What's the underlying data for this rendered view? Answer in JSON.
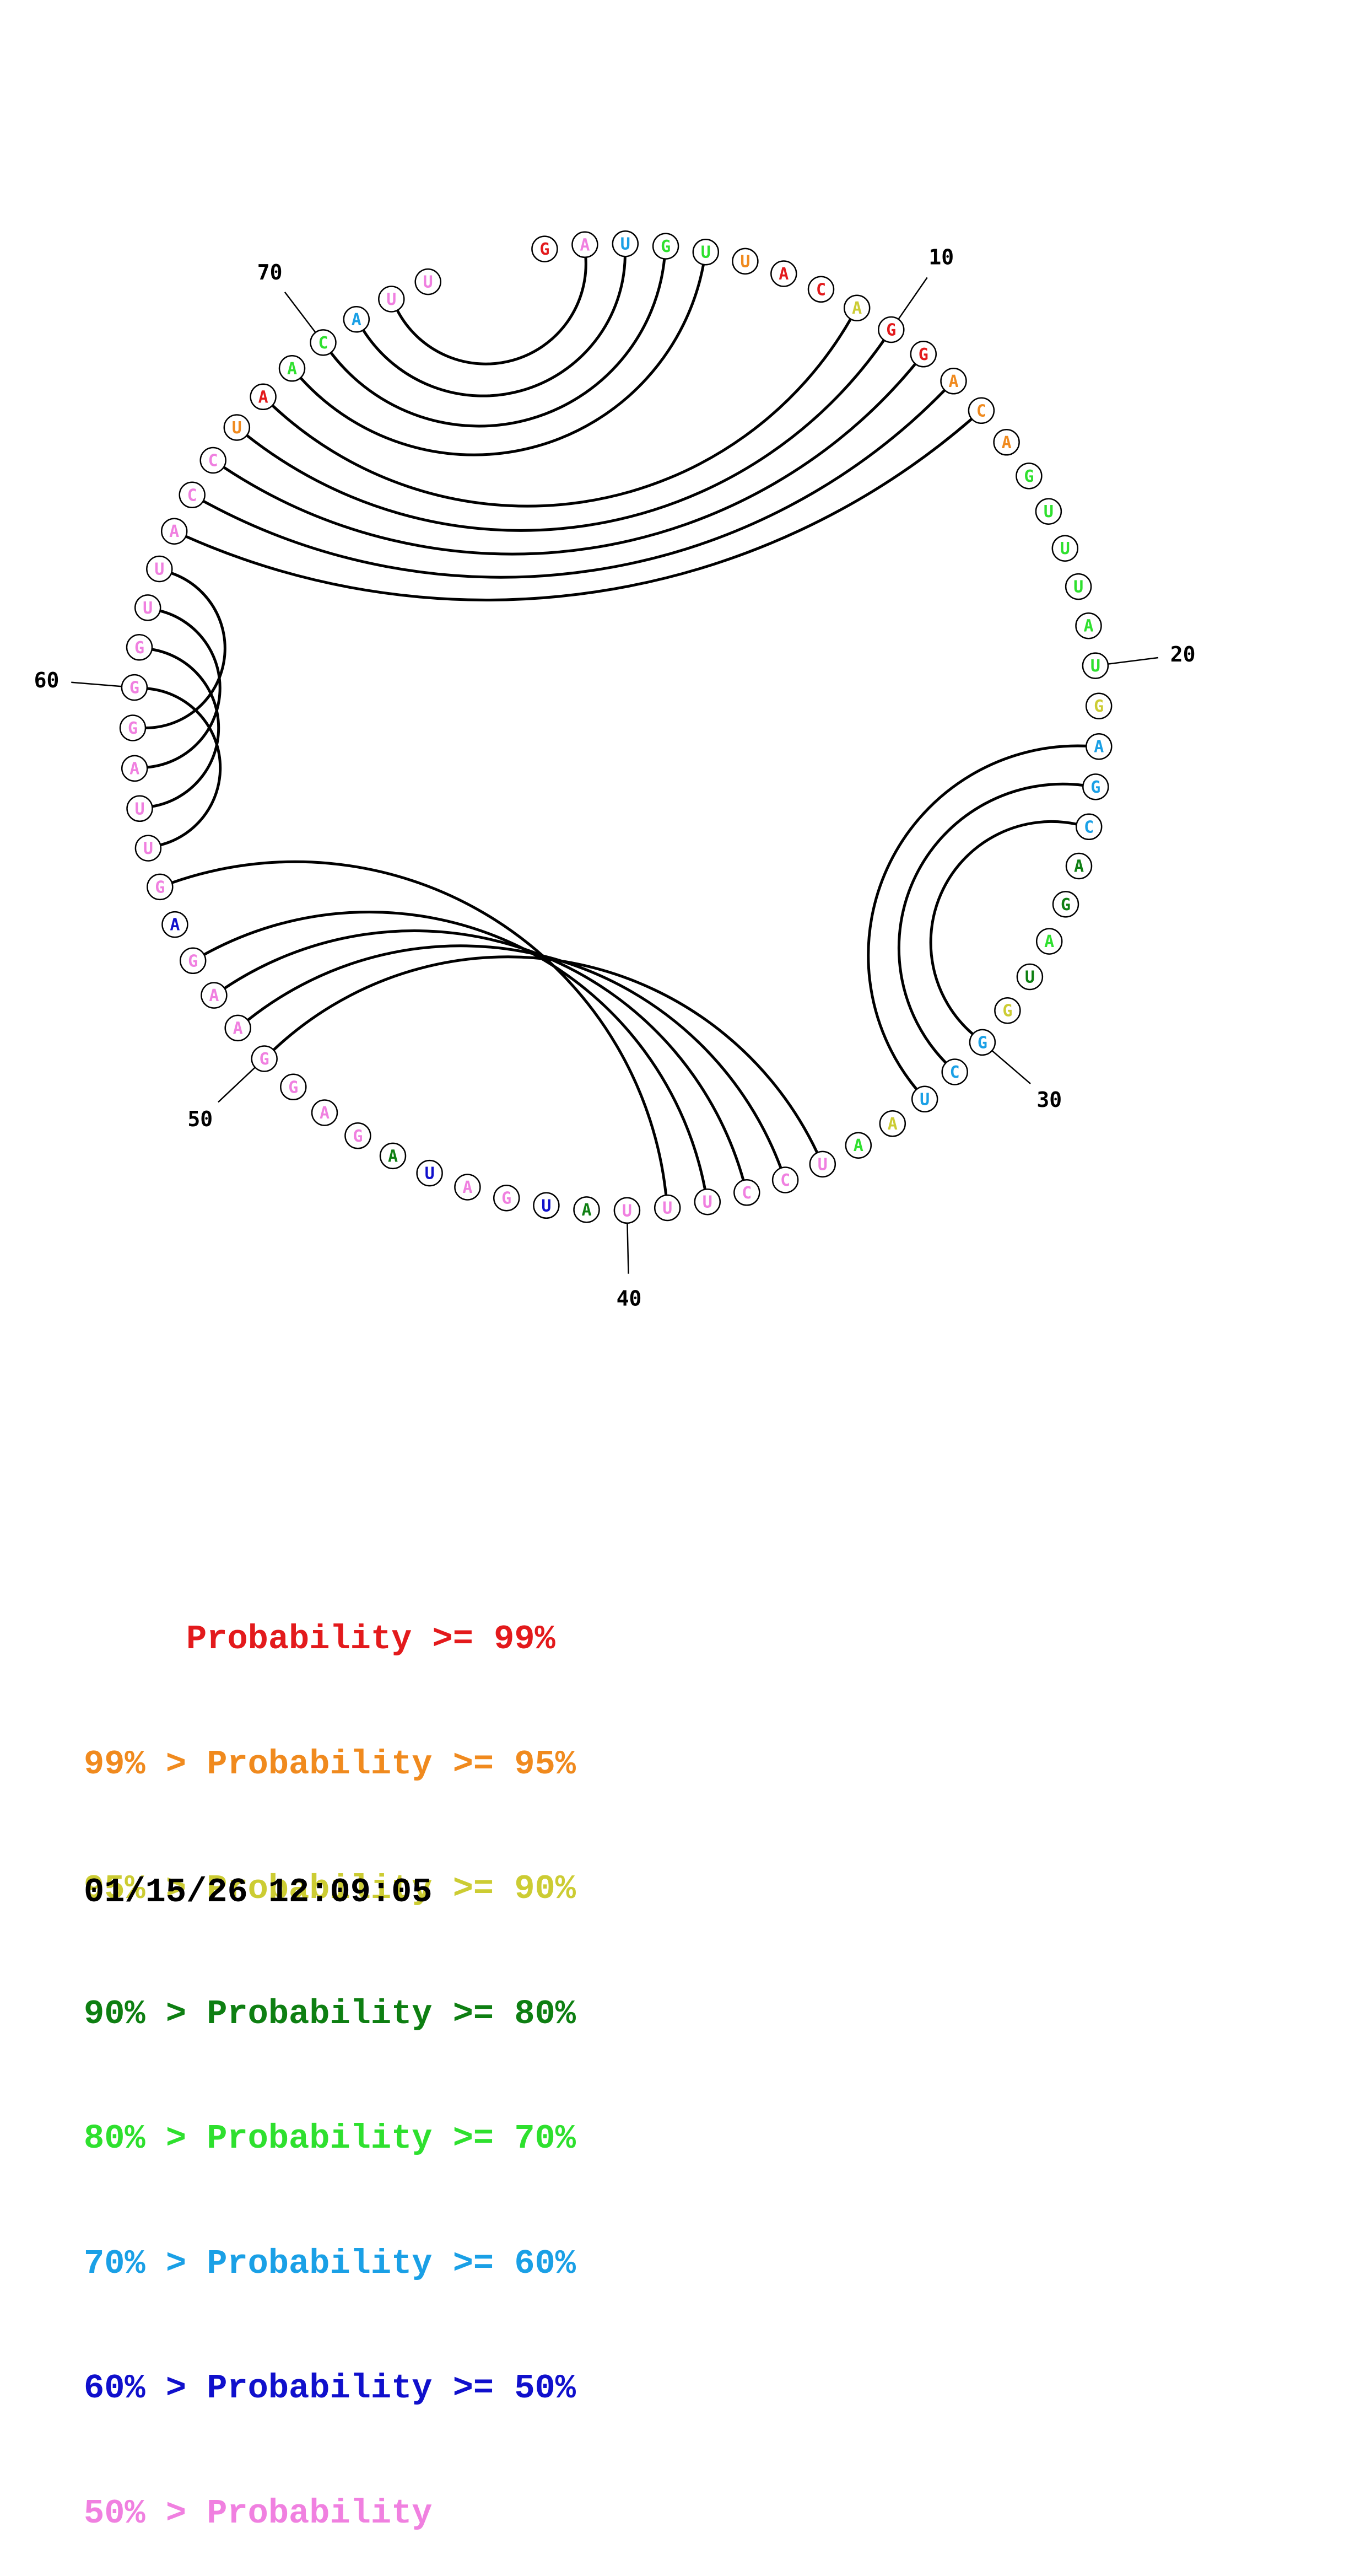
{
  "diagram": {
    "type": "circular RNA base-pair probability plot",
    "sequence": "GAUGUUACAGGACAGUUUAUGAGCAGUAGGCUUAAUCCUUUAUGAUAGAGGAAGAGUUAGGGUUACCUAACAUU",
    "nucleotides": [
      {
        "n": 1,
        "base": "G",
        "color_class": "red"
      },
      {
        "n": 2,
        "base": "A",
        "color_class": "pink"
      },
      {
        "n": 3,
        "base": "U",
        "color_class": "lightblue"
      },
      {
        "n": 4,
        "base": "G",
        "color_class": "lightgreen"
      },
      {
        "n": 5,
        "base": "U",
        "color_class": "lightgreen"
      },
      {
        "n": 6,
        "base": "U",
        "color_class": "orange"
      },
      {
        "n": 7,
        "base": "A",
        "color_class": "red"
      },
      {
        "n": 8,
        "base": "C",
        "color_class": "red"
      },
      {
        "n": 9,
        "base": "A",
        "color_class": "yellow"
      },
      {
        "n": 10,
        "base": "G",
        "color_class": "red"
      },
      {
        "n": 11,
        "base": "G",
        "color_class": "red"
      },
      {
        "n": 12,
        "base": "A",
        "color_class": "orange"
      },
      {
        "n": 13,
        "base": "C",
        "color_class": "orange"
      },
      {
        "n": 14,
        "base": "A",
        "color_class": "orange"
      },
      {
        "n": 15,
        "base": "G",
        "color_class": "lightgreen"
      },
      {
        "n": 16,
        "base": "U",
        "color_class": "lightgreen"
      },
      {
        "n": 17,
        "base": "U",
        "color_class": "lightgreen"
      },
      {
        "n": 18,
        "base": "U",
        "color_class": "lightgreen"
      },
      {
        "n": 19,
        "base": "A",
        "color_class": "lightgreen"
      },
      {
        "n": 20,
        "base": "U",
        "color_class": "lightgreen"
      },
      {
        "n": 21,
        "base": "G",
        "color_class": "yellow"
      },
      {
        "n": 22,
        "base": "A",
        "color_class": "lightblue"
      },
      {
        "n": 23,
        "base": "G",
        "color_class": "lightblue"
      },
      {
        "n": 24,
        "base": "C",
        "color_class": "lightblue"
      },
      {
        "n": 25,
        "base": "A",
        "color_class": "darkgreen"
      },
      {
        "n": 26,
        "base": "G",
        "color_class": "darkgreen"
      },
      {
        "n": 27,
        "base": "A",
        "color_class": "lightgreen"
      },
      {
        "n": 28,
        "base": "U",
        "color_class": "darkgreen"
      },
      {
        "n": 29,
        "base": "G",
        "color_class": "yellow"
      },
      {
        "n": 30,
        "base": "G",
        "color_class": "lightblue"
      },
      {
        "n": 31,
        "base": "C",
        "color_class": "lightblue"
      },
      {
        "n": 32,
        "base": "U",
        "color_class": "lightblue"
      },
      {
        "n": 33,
        "base": "A",
        "color_class": "yellow"
      },
      {
        "n": 34,
        "base": "A",
        "color_class": "lightgreen"
      },
      {
        "n": 35,
        "base": "U",
        "color_class": "pink"
      },
      {
        "n": 36,
        "base": "C",
        "color_class": "pink"
      },
      {
        "n": 37,
        "base": "C",
        "color_class": "pink"
      },
      {
        "n": 38,
        "base": "U",
        "color_class": "pink"
      },
      {
        "n": 39,
        "base": "U",
        "color_class": "pink"
      },
      {
        "n": 40,
        "base": "U",
        "color_class": "pink"
      },
      {
        "n": 41,
        "base": "A",
        "color_class": "darkgreen"
      },
      {
        "n": 42,
        "base": "U",
        "color_class": "blue"
      },
      {
        "n": 43,
        "base": "G",
        "color_class": "pink"
      },
      {
        "n": 44,
        "base": "A",
        "color_class": "pink"
      },
      {
        "n": 45,
        "base": "U",
        "color_class": "blue"
      },
      {
        "n": 46,
        "base": "A",
        "color_class": "darkgreen"
      },
      {
        "n": 47,
        "base": "G",
        "color_class": "pink"
      },
      {
        "n": 48,
        "base": "A",
        "color_class": "pink"
      },
      {
        "n": 49,
        "base": "G",
        "color_class": "pink"
      },
      {
        "n": 50,
        "base": "G",
        "color_class": "pink"
      },
      {
        "n": 51,
        "base": "A",
        "color_class": "pink"
      },
      {
        "n": 52,
        "base": "A",
        "color_class": "pink"
      },
      {
        "n": 53,
        "base": "G",
        "color_class": "pink"
      },
      {
        "n": 54,
        "base": "A",
        "color_class": "blue"
      },
      {
        "n": 55,
        "base": "G",
        "color_class": "pink"
      },
      {
        "n": 56,
        "base": "U",
        "color_class": "pink"
      },
      {
        "n": 57,
        "base": "U",
        "color_class": "pink"
      },
      {
        "n": 58,
        "base": "A",
        "color_class": "pink"
      },
      {
        "n": 59,
        "base": "G",
        "color_class": "pink"
      },
      {
        "n": 60,
        "base": "G",
        "color_class": "pink"
      },
      {
        "n": 61,
        "base": "G",
        "color_class": "pink"
      },
      {
        "n": 62,
        "base": "U",
        "color_class": "pink"
      },
      {
        "n": 63,
        "base": "U",
        "color_class": "pink"
      },
      {
        "n": 64,
        "base": "A",
        "color_class": "pink"
      },
      {
        "n": 65,
        "base": "C",
        "color_class": "pink"
      },
      {
        "n": 66,
        "base": "C",
        "color_class": "pink"
      },
      {
        "n": 67,
        "base": "U",
        "color_class": "orange"
      },
      {
        "n": 68,
        "base": "A",
        "color_class": "red"
      },
      {
        "n": 69,
        "base": "A",
        "color_class": "lightgreen"
      },
      {
        "n": 70,
        "base": "C",
        "color_class": "lightgreen"
      },
      {
        "n": 71,
        "base": "A",
        "color_class": "lightblue"
      },
      {
        "n": 72,
        "base": "U",
        "color_class": "pink"
      },
      {
        "n": 73,
        "base": "U",
        "color_class": "pink"
      }
    ],
    "base_pairs": [
      [
        2,
        72
      ],
      [
        3,
        71
      ],
      [
        4,
        70
      ],
      [
        5,
        69
      ],
      [
        9,
        68
      ],
      [
        10,
        67
      ],
      [
        11,
        66
      ],
      [
        12,
        65
      ],
      [
        13,
        64
      ],
      [
        22,
        32
      ],
      [
        23,
        31
      ],
      [
        24,
        30
      ],
      [
        35,
        50
      ],
      [
        36,
        51
      ],
      [
        37,
        52
      ],
      [
        38,
        53
      ],
      [
        39,
        55
      ],
      [
        56,
        60
      ],
      [
        57,
        61
      ],
      [
        58,
        62
      ],
      [
        59,
        63
      ]
    ],
    "tick_labels": [
      {
        "n": 10,
        "text": "10"
      },
      {
        "n": 20,
        "text": "20"
      },
      {
        "n": 30,
        "text": "30"
      },
      {
        "n": 40,
        "text": "40"
      },
      {
        "n": 50,
        "text": "50"
      },
      {
        "n": 60,
        "text": "60"
      },
      {
        "n": 70,
        "text": "70"
      }
    ]
  },
  "colors": {
    "red": "#e31a1c",
    "orange": "#f08a1e",
    "yellow": "#cccc33",
    "darkgreen": "#0e7f12",
    "lightgreen": "#2ee02e",
    "lightblue": "#1aa0e6",
    "blue": "#1010cc",
    "pink": "#f080e0"
  },
  "legend": [
    {
      "text": "     Probability >= 99%",
      "color": "red"
    },
    {
      "text": "99% > Probability >= 95%",
      "color": "orange"
    },
    {
      "text": "95% > Probability >= 90%",
      "color": "yellow"
    },
    {
      "text": "90% > Probability >= 80%",
      "color": "darkgreen"
    },
    {
      "text": "80% > Probability >= 70%",
      "color": "lightgreen"
    },
    {
      "text": "70% > Probability >= 60%",
      "color": "lightblue"
    },
    {
      "text": "60% > Probability >= 50%",
      "color": "blue"
    },
    {
      "text": "50% > Probability",
      "color": "pink"
    }
  ],
  "timestamp": "01/15/26 12:09:05"
}
